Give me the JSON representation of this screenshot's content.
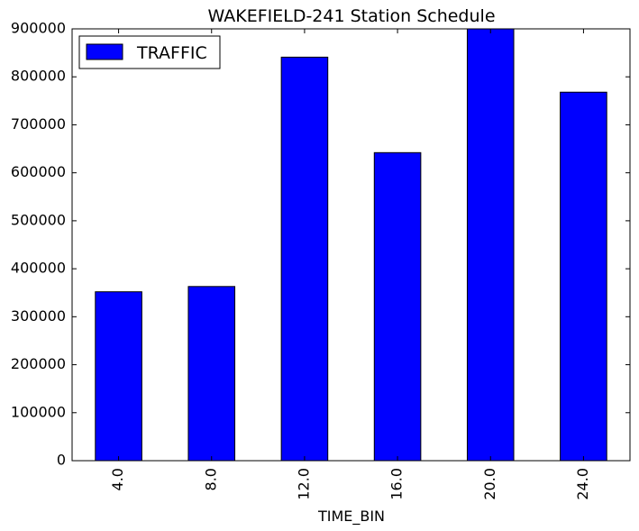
{
  "chart_data": {
    "type": "bar",
    "title": "WAKEFIELD-241 Station Schedule",
    "xlabel": "TIME_BIN",
    "ylabel": "",
    "categories": [
      "4.0",
      "8.0",
      "12.0",
      "16.0",
      "20.0",
      "24.0"
    ],
    "series": [
      {
        "name": "TRAFFIC",
        "values": [
          352000,
          363000,
          841000,
          642000,
          900000,
          768000
        ]
      }
    ],
    "ylim": [
      0,
      900000
    ],
    "yticks": [
      "0",
      "100000",
      "200000",
      "300000",
      "400000",
      "500000",
      "600000",
      "700000",
      "800000",
      "900000"
    ],
    "grid": false,
    "legend_position": "top-left",
    "colors": {
      "bar": "#0000ff",
      "edge": "#000000",
      "axis": "#000000",
      "background": "#ffffff"
    }
  }
}
